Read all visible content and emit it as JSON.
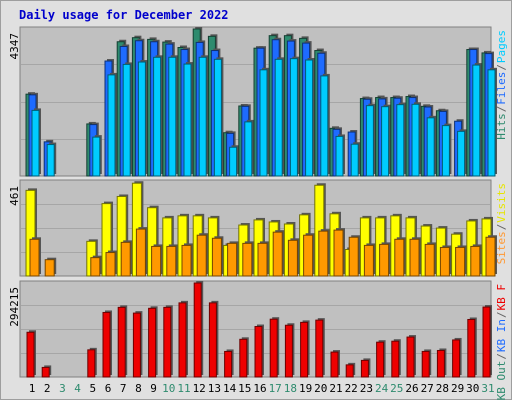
{
  "page": {
    "title": "Daily usage for December 2022"
  },
  "chart_data": {
    "type": "bar",
    "title": "Daily usage for December 2022",
    "categories": [
      "1",
      "2",
      "3",
      "4",
      "5",
      "6",
      "7",
      "8",
      "9",
      "10",
      "11",
      "12",
      "13",
      "14",
      "15",
      "16",
      "17",
      "18",
      "19",
      "20",
      "21",
      "22",
      "23",
      "24",
      "25",
      "26",
      "27",
      "28",
      "29",
      "30",
      "31"
    ],
    "weekend_days": [
      "3",
      "4",
      "10",
      "11",
      "17",
      "18",
      "24",
      "25",
      "31"
    ],
    "panels": [
      {
        "id": "hits",
        "ymax_label": "4347",
        "ylim": [
          0,
          4347
        ],
        "legend": [
          {
            "label": "Pages",
            "color": "#00ccff"
          },
          {
            "label": "/",
            "color": "#666666"
          },
          {
            "label": "Files",
            "color": "#1e6bff"
          },
          {
            "label": "/",
            "color": "#666666"
          },
          {
            "label": "Hits",
            "color": "#2e8b6e"
          }
        ],
        "series": [
          {
            "name": "Hits",
            "color": "#2e8b6e",
            "values": [
              2420,
              0,
              0,
              0,
              1540,
              0,
              3970,
              4090,
              4040,
              3960,
              3800,
              4347,
              4130,
              1280,
              2070,
              3780,
              4150,
              4150,
              4070,
              3710,
              1410,
              0,
              2290,
              2320,
              2320,
              2350,
              2060,
              1930,
              0,
              3740,
              3640
            ]
          },
          {
            "name": "Files",
            "color": "#1e6bff",
            "values": [
              2400,
              1010,
              0,
              0,
              1520,
              3400,
              3830,
              4000,
              3970,
              3900,
              3740,
              3950,
              3710,
              1260,
              2060,
              3780,
              4030,
              3990,
              3930,
              3630,
              1380,
              1300,
              2270,
              2280,
              2300,
              2320,
              2040,
              1910,
              1620,
              3740,
              3620
            ]
          },
          {
            "name": "Pages",
            "color": "#00ccff",
            "values": [
              1940,
              930,
              0,
              0,
              1150,
              2990,
              3300,
              3370,
              3510,
              3510,
              3310,
              3510,
              3450,
              850,
              1600,
              3140,
              3450,
              3470,
              3430,
              2960,
              1170,
              940,
              2080,
              2050,
              2110,
              2120,
              1720,
              1490,
              1320,
              3280,
              3140
            ]
          }
        ]
      },
      {
        "id": "visits",
        "ymax_label": "461",
        "ylim": [
          0,
          461
        ],
        "legend": [
          {
            "label": "Visits",
            "color": "#e6e600"
          },
          {
            "label": "/",
            "color": "#666666"
          },
          {
            "label": "Sites",
            "color": "#ff9933"
          }
        ],
        "series": [
          {
            "name": "Visits",
            "color": "#ffff00",
            "values": [
              420,
              0,
              0,
              0,
              170,
              355,
              390,
              455,
              335,
              285,
              295,
              295,
              285,
              150,
              250,
              275,
              265,
              255,
              300,
              445,
              305,
              130,
              285,
              285,
              295,
              285,
              245,
              235,
              205,
              270,
              280
            ]
          },
          {
            "name": "Sites",
            "color": "#ff9900",
            "values": [
              180,
              80,
              0,
              0,
              90,
              115,
              165,
              230,
              145,
              145,
              150,
              200,
              185,
              160,
              160,
              160,
              215,
              175,
              200,
              220,
              225,
              190,
              150,
              155,
              180,
              180,
              155,
              140,
              140,
              145,
              190
            ]
          }
        ]
      },
      {
        "id": "kbytes",
        "ymax_label": "294215",
        "ylim": [
          0,
          294215
        ],
        "legend": [
          {
            "label": "KB F",
            "color": "#ee0000"
          },
          {
            "label": "/",
            "color": "#666666"
          },
          {
            "label": "KB In",
            "color": "#1e6bff"
          },
          {
            "label": "/",
            "color": "#666666"
          },
          {
            "label": "KB Out",
            "color": "#2e8b6e"
          }
        ],
        "series": [
          {
            "name": "KB F",
            "color": "#ee0000",
            "values": [
              140000,
              30000,
              0,
              0,
              85000,
              202000,
              218000,
              200000,
              215000,
              218000,
              232000,
              294215,
              232000,
              80000,
              118000,
              158000,
              181000,
              162000,
              171000,
              178000,
              78000,
              38000,
              52000,
              109000,
              112000,
              125000,
              80000,
              83000,
              116000,
              180000,
              219000
            ]
          }
        ]
      }
    ]
  }
}
